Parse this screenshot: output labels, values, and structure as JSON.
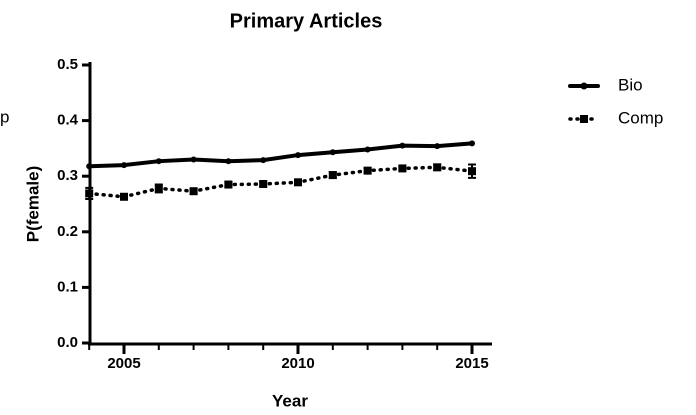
{
  "chart_data": {
    "type": "line",
    "title": "Primary Articles",
    "annotation": "p",
    "x_label": "Year",
    "y_label": "P(female)",
    "x": [
      2004,
      2005,
      2006,
      2007,
      2008,
      2009,
      2010,
      2011,
      2012,
      2013,
      2014,
      2015
    ],
    "series": [
      {
        "name": "Bio",
        "color": "#000000",
        "style": "solid",
        "marker": "circle",
        "values": [
          0.318,
          0.32,
          0.327,
          0.33,
          0.327,
          0.329,
          0.338,
          0.343,
          0.348,
          0.355,
          0.354,
          0.359
        ]
      },
      {
        "name": "Comp",
        "color": "#000000",
        "style": "dotted",
        "marker": "square",
        "values": [
          0.269,
          0.263,
          0.278,
          0.273,
          0.285,
          0.286,
          0.289,
          0.302,
          0.31,
          0.314,
          0.316,
          0.309
        ],
        "errors": [
          0.01,
          0.004,
          0.007,
          0.004,
          0.004,
          0.004,
          0.004,
          0.005,
          0.004,
          0.004,
          0.005,
          0.012
        ]
      }
    ],
    "xlim": [
      2004,
      2015.5
    ],
    "xticks": [
      2005,
      2010,
      2015
    ],
    "xminorticks": [
      2004,
      2006,
      2007,
      2008,
      2009,
      2011,
      2012,
      2013,
      2014
    ],
    "ylim": [
      0,
      0.5
    ],
    "yticks": [
      {
        "value": 0,
        "label": "0.0"
      },
      0.1,
      0.2,
      0.3,
      0.4,
      0.5
    ],
    "legend": "right",
    "grid": false
  }
}
